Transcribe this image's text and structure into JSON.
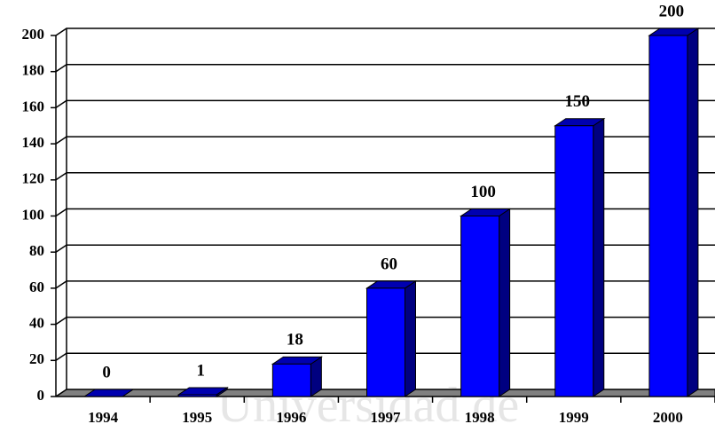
{
  "chart_data": {
    "type": "bar3d",
    "watermark": "Universidad de",
    "categories": [
      "1994",
      "1995",
      "1996",
      "1997",
      "1998",
      "1999",
      "2000"
    ],
    "values": [
      0,
      1,
      18,
      60,
      100,
      150,
      200
    ],
    "color": "#0000ff",
    "ylim": [
      0,
      200
    ],
    "yticks": [
      0,
      20,
      40,
      60,
      80,
      100,
      120,
      140,
      160,
      180,
      200
    ],
    "grid": true
  }
}
